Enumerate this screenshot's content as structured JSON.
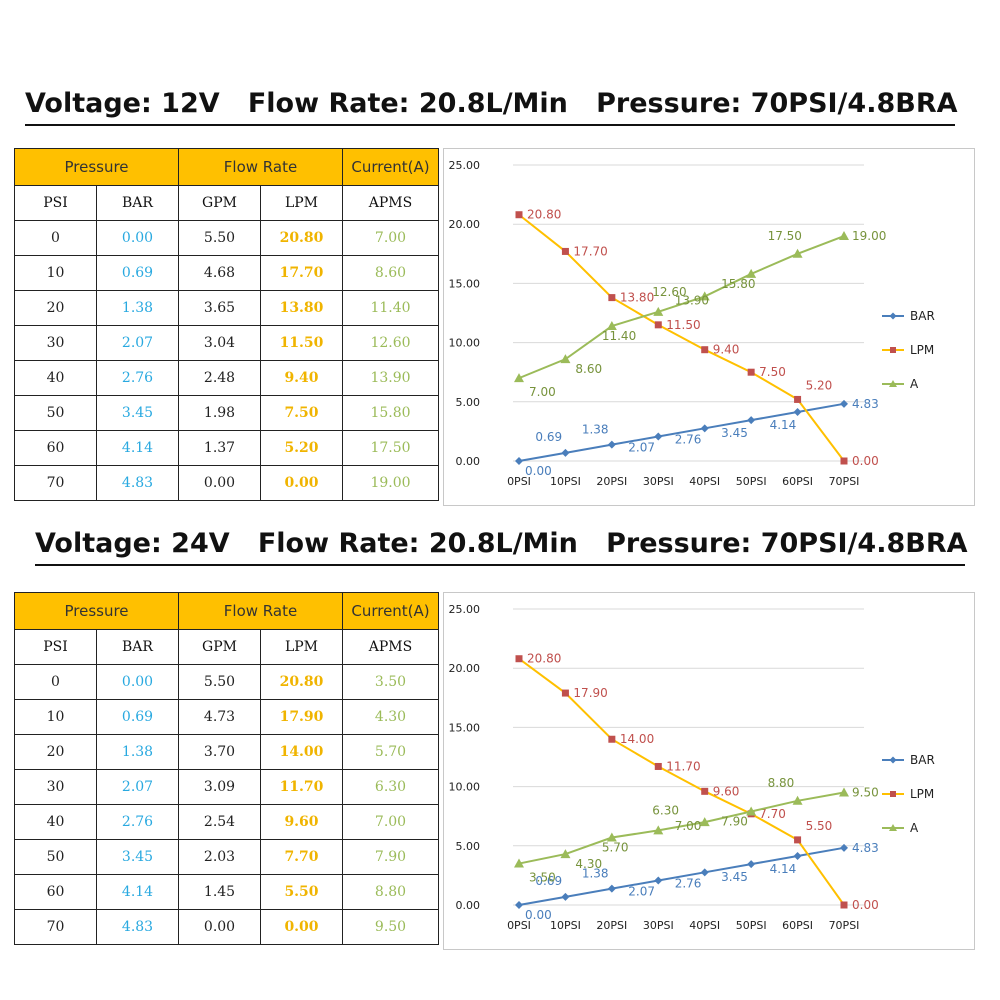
{
  "sections": [
    {
      "heading": "Voltage: 12V   Flow Rate: 20.8L/Min   Pressure: 70PSI/4.8BRA",
      "table": {
        "group_headers": [
          "Pressure",
          "Flow Rate",
          "Current(A)"
        ],
        "col_headers": [
          "PSI",
          "BAR",
          "GPM",
          "LPM",
          "APMS"
        ],
        "rows": [
          [
            "0",
            "0.00",
            "5.50",
            "20.80",
            "7.00"
          ],
          [
            "10",
            "0.69",
            "4.68",
            "17.70",
            "8.60"
          ],
          [
            "20",
            "1.38",
            "3.65",
            "13.80",
            "11.40"
          ],
          [
            "30",
            "2.07",
            "3.04",
            "11.50",
            "12.60"
          ],
          [
            "40",
            "2.76",
            "2.48",
            "9.40",
            "13.90"
          ],
          [
            "50",
            "3.45",
            "1.98",
            "7.50",
            "15.80"
          ],
          [
            "60",
            "4.14",
            "1.37",
            "5.20",
            "17.50"
          ],
          [
            "70",
            "4.83",
            "0.00",
            "0.00",
            "19.00"
          ]
        ]
      }
    },
    {
      "heading": "Voltage: 24V   Flow Rate: 20.8L/Min   Pressure: 70PSI/4.8BRA",
      "table": {
        "group_headers": [
          "Pressure",
          "Flow Rate",
          "Current(A)"
        ],
        "col_headers": [
          "PSI",
          "BAR",
          "GPM",
          "LPM",
          "APMS"
        ],
        "rows": [
          [
            "0",
            "0.00",
            "5.50",
            "20.80",
            "3.50"
          ],
          [
            "10",
            "0.69",
            "4.73",
            "17.90",
            "4.30"
          ],
          [
            "20",
            "1.38",
            "3.70",
            "14.00",
            "5.70"
          ],
          [
            "30",
            "2.07",
            "3.09",
            "11.70",
            "6.30"
          ],
          [
            "40",
            "2.76",
            "2.54",
            "9.60",
            "7.00"
          ],
          [
            "50",
            "3.45",
            "2.03",
            "7.70",
            "7.90"
          ],
          [
            "60",
            "4.14",
            "1.45",
            "5.50",
            "8.80"
          ],
          [
            "70",
            "4.83",
            "0.00",
            "0.00",
            "9.50"
          ]
        ]
      }
    }
  ],
  "colors": {
    "header_fill": "#FFC000",
    "bar_text": "#29A9E0",
    "lpm_text": "#F0B400",
    "amp_text": "#9BBB59",
    "bar_series": "#4A7EBB",
    "lpm_series": "#FFC000",
    "amp_series": "#9BBB59",
    "bar_label": "#4A7EBB",
    "lpm_label": "#C0504D",
    "amp_label": "#77933C",
    "grid": "#d9d9d9"
  },
  "chart_data": [
    {
      "type": "line",
      "categories": [
        "0PSI",
        "10PSI",
        "20PSI",
        "30PSI",
        "40PSI",
        "50PSI",
        "60PSI",
        "70PSI"
      ],
      "ylim": [
        0,
        25
      ],
      "yticks": [
        "0.00",
        "5.00",
        "10.00",
        "15.00",
        "20.00",
        "25.00"
      ],
      "grid": true,
      "legend": "right",
      "series": [
        {
          "name": "BAR",
          "marker": "diamond",
          "values": [
            0.0,
            0.69,
            1.38,
            2.07,
            2.76,
            3.45,
            4.14,
            4.83
          ],
          "labels": [
            "0.00",
            "0.69",
            "1.38",
            "2.07",
            "2.76",
            "3.45",
            "4.14",
            "4.83"
          ]
        },
        {
          "name": "LPM",
          "marker": "square",
          "values": [
            20.8,
            17.7,
            13.8,
            11.5,
            9.4,
            7.5,
            5.2,
            0.0
          ],
          "labels": [
            "20.80",
            "17.70",
            "13.80",
            "11.50",
            "9.40",
            "7.50",
            "5.20",
            "0.00"
          ]
        },
        {
          "name": "A",
          "marker": "triangle",
          "values": [
            7.0,
            8.6,
            11.4,
            12.6,
            13.9,
            15.8,
            17.5,
            19.0
          ],
          "labels": [
            "7.00",
            "8.60",
            "11.40",
            "12.60",
            "13.90",
            "15.80",
            "17.50",
            "19.00"
          ]
        }
      ]
    },
    {
      "type": "line",
      "categories": [
        "0PSI",
        "10PSI",
        "20PSI",
        "30PSI",
        "40PSI",
        "50PSI",
        "60PSI",
        "70PSI"
      ],
      "ylim": [
        0,
        25
      ],
      "yticks": [
        "0.00",
        "5.00",
        "10.00",
        "15.00",
        "20.00",
        "25.00"
      ],
      "grid": true,
      "legend": "right",
      "series": [
        {
          "name": "BAR",
          "marker": "diamond",
          "values": [
            0.0,
            0.69,
            1.38,
            2.07,
            2.76,
            3.45,
            4.14,
            4.83
          ],
          "labels": [
            "0.00",
            "0.69",
            "1.38",
            "2.07",
            "2.76",
            "3.45",
            "4.14",
            "4.83"
          ]
        },
        {
          "name": "LPM",
          "marker": "square",
          "values": [
            20.8,
            17.9,
            14.0,
            11.7,
            9.6,
            7.7,
            5.5,
            0.0
          ],
          "labels": [
            "20.80",
            "17.90",
            "14.00",
            "11.70",
            "9.60",
            "7.70",
            "5.50",
            "0.00"
          ]
        },
        {
          "name": "A",
          "marker": "triangle",
          "values": [
            3.5,
            4.3,
            5.7,
            6.3,
            7.0,
            7.9,
            8.8,
            9.5
          ],
          "labels": [
            "3.50",
            "4.30",
            "5.70",
            "6.30",
            "7.00",
            "7.90",
            "8.80",
            "9.50"
          ]
        }
      ]
    }
  ]
}
